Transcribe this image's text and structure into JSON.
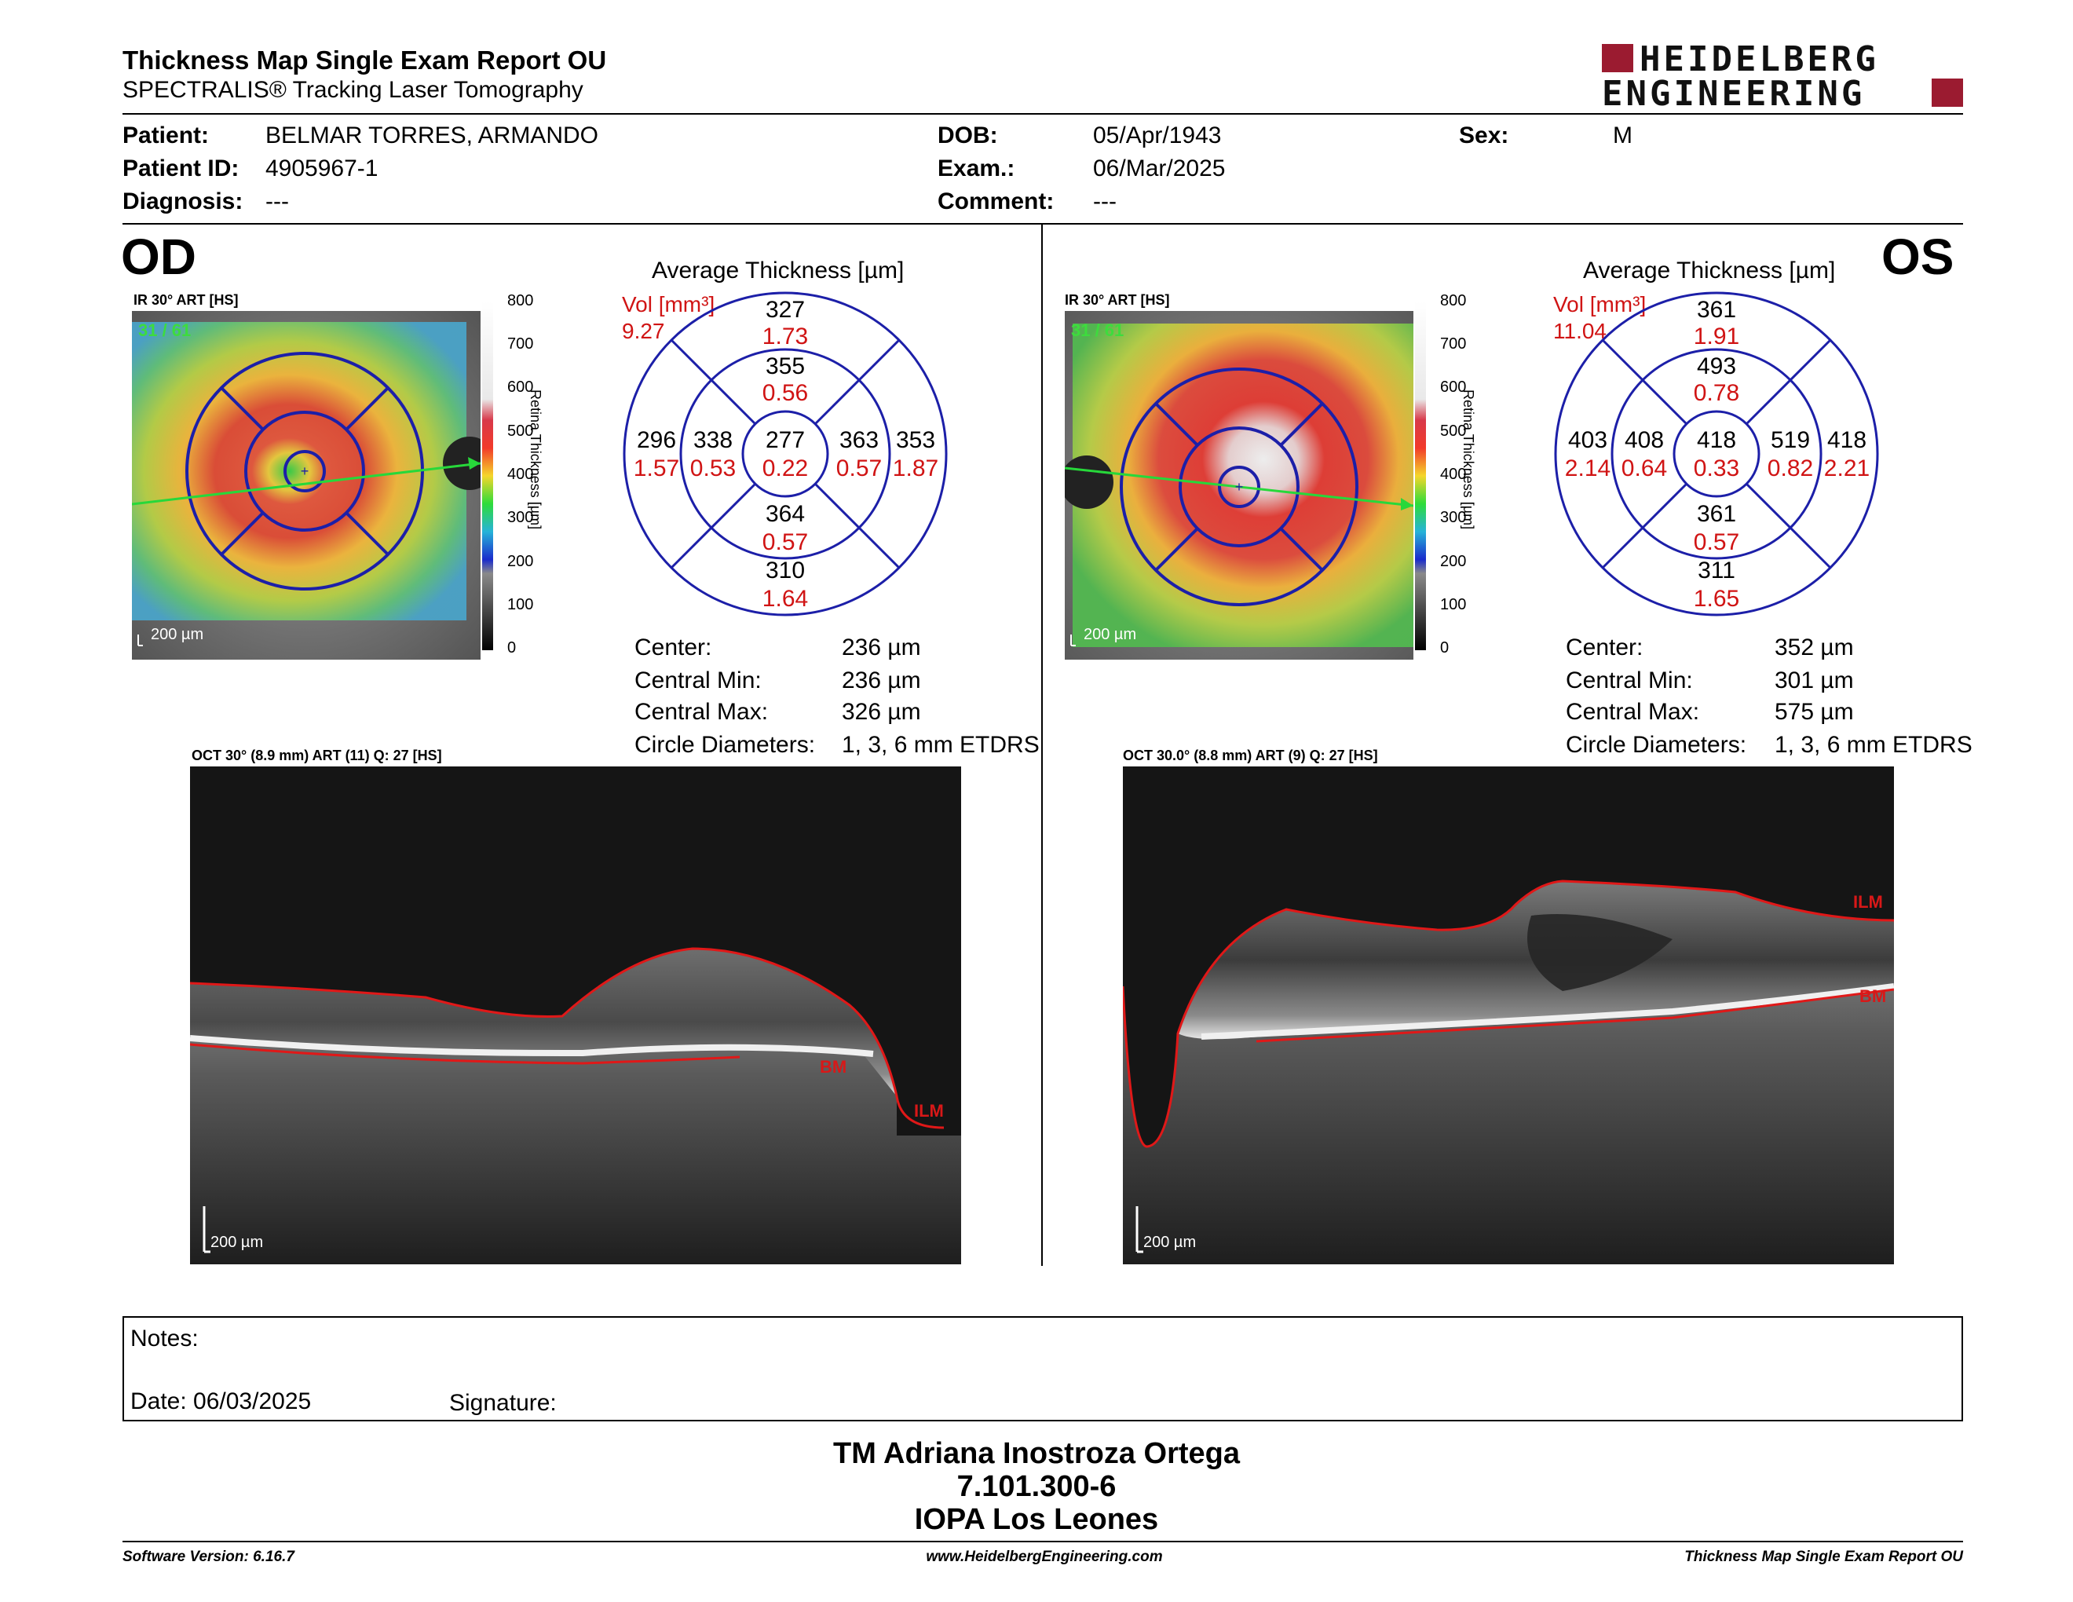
{
  "report": {
    "title": "Thickness Map Single Exam Report OU",
    "subtitle": "SPECTRALIS® Tracking Laser Tomography",
    "logo_line1": "HEIDELBERG",
    "logo_line2": "ENGINEERING"
  },
  "patient": {
    "patient_label": "Patient:",
    "patient_value": "BELMAR TORRES, ARMANDO",
    "id_label": "Patient ID:",
    "id_value": "4905967-1",
    "diagnosis_label": "Diagnosis:",
    "diagnosis_value": "---",
    "dob_label": "DOB:",
    "dob_value": "05/Apr/1943",
    "exam_label": "Exam.:",
    "exam_value": "06/Mar/2025",
    "comment_label": "Comment:",
    "comment_value": "---",
    "sex_label": "Sex:",
    "sex_value": "M"
  },
  "od": {
    "eye_label": "OD",
    "ir_header": "IR 30° ART [HS]",
    "frame_count": "31 / 61",
    "scale_label": "200 µm",
    "avg_title": "Average Thickness [µm]",
    "vol_label": "Vol [mm³]",
    "vol_total": "9.27",
    "grid": {
      "center_t": "277",
      "center_v": "0.22",
      "inner_sup_t": "355",
      "inner_sup_v": "0.56",
      "inner_inf_t": "364",
      "inner_inf_v": "0.57",
      "inner_left_t": "338",
      "inner_left_v": "0.53",
      "inner_right_t": "363",
      "inner_right_v": "0.57",
      "outer_sup_t": "327",
      "outer_sup_v": "1.73",
      "outer_inf_t": "310",
      "outer_inf_v": "1.64",
      "outer_left_t": "296",
      "outer_left_v": "1.57",
      "outer_right_t": "353",
      "outer_right_v": "1.87"
    },
    "stats": {
      "center_label": "Center:",
      "center_value": "236 µm",
      "min_label": "Central Min:",
      "min_value": "236 µm",
      "max_label": "Central Max:",
      "max_value": "326 µm",
      "circle_label": "Circle Diameters:",
      "circle_value": "1, 3, 6 mm ETDRS"
    },
    "oct_header": "OCT 30° (8.9 mm) ART (11) Q: 27 [HS]",
    "oct_scale": "200 µm",
    "ilm_label": "ILM",
    "bm_label": "BM"
  },
  "os": {
    "eye_label": "OS",
    "ir_header": "IR 30° ART [HS]",
    "frame_count": "31 / 61",
    "scale_label": "200 µm",
    "avg_title": "Average Thickness [µm]",
    "vol_label": "Vol [mm³]",
    "vol_total": "11.04",
    "grid": {
      "center_t": "418",
      "center_v": "0.33",
      "inner_sup_t": "493",
      "inner_sup_v": "0.78",
      "inner_inf_t": "361",
      "inner_inf_v": "0.57",
      "inner_left_t": "408",
      "inner_left_v": "0.64",
      "inner_right_t": "519",
      "inner_right_v": "0.82",
      "outer_sup_t": "361",
      "outer_sup_v": "1.91",
      "outer_inf_t": "311",
      "outer_inf_v": "1.65",
      "outer_left_t": "403",
      "outer_left_v": "2.14",
      "outer_right_t": "418",
      "outer_right_v": "2.21"
    },
    "stats": {
      "center_label": "Center:",
      "center_value": "352 µm",
      "min_label": "Central Min:",
      "min_value": "301 µm",
      "max_label": "Central Max:",
      "max_value": "575 µm",
      "circle_label": "Circle Diameters:",
      "circle_value": "1, 3, 6 mm ETDRS"
    },
    "oct_header": "OCT 30.0° (8.8 mm) ART (9) Q: 27 [HS]",
    "oct_scale": "200 µm",
    "ilm_label": "ILM",
    "bm_label": "BM"
  },
  "colorbar": {
    "ticks": [
      "800",
      "700",
      "600",
      "500",
      "400",
      "300",
      "200",
      "100",
      "0"
    ],
    "axis_label": "Retina Thickness [µm]"
  },
  "notes": {
    "notes_label": "Notes:",
    "date_label": "Date: 06/03/2025",
    "signature_label": "Signature:"
  },
  "signer": {
    "name": "TM Adriana Inostroza Ortega",
    "id": "7.101.300-6",
    "institution": "IOPA Los Leones"
  },
  "footer": {
    "software": "Software Version: 6.16.7",
    "website": "www.HeidelbergEngineering.com",
    "report_name": "Thickness Map Single Exam Report OU"
  }
}
